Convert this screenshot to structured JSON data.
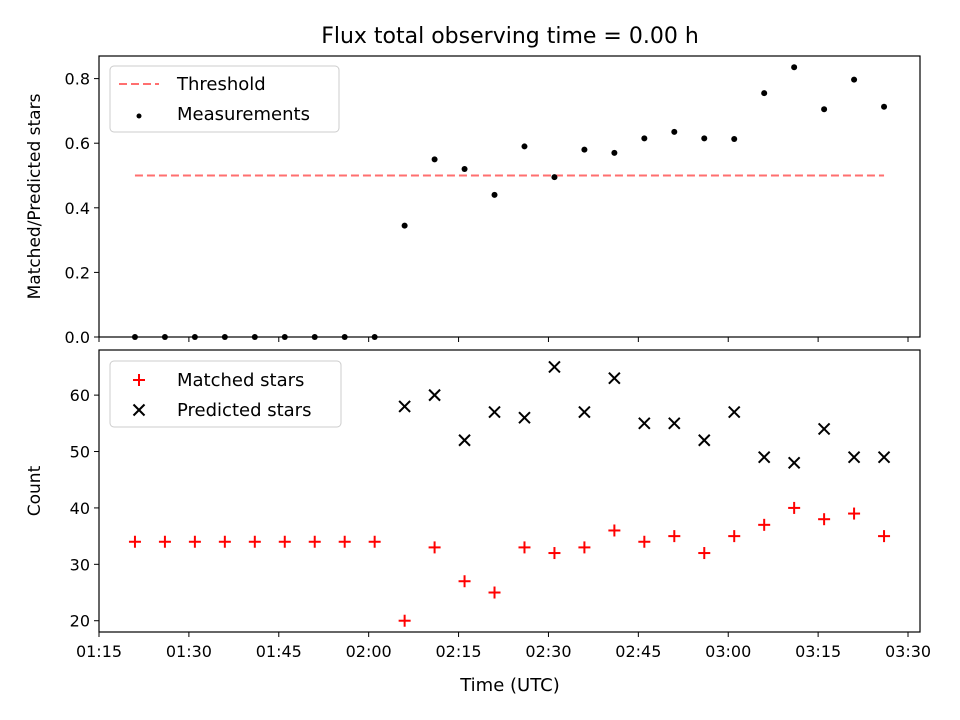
{
  "title": "Flux total observing time = 0.00 h",
  "xlabel": "Time (UTC)",
  "x_ticks": [
    "01:15",
    "01:30",
    "01:45",
    "02:00",
    "02:15",
    "02:30",
    "02:45",
    "03:00",
    "03:15",
    "03:30"
  ],
  "colors": {
    "threshold": "#ff6f6f",
    "measurements": "#000000",
    "matched": "#ff0000",
    "predicted": "#000000"
  },
  "chart_data": [
    {
      "type": "scatter",
      "ylabel": "Matched/Predicted stars",
      "ylim": [
        0,
        0.87
      ],
      "xlim": [
        "01:15",
        "03:32"
      ],
      "y_ticks": [
        "0.0",
        "0.2",
        "0.4",
        "0.6",
        "0.8"
      ],
      "legend_position": "top-left",
      "x": [
        "01:21",
        "01:26",
        "01:31",
        "01:36",
        "01:41",
        "01:46",
        "01:51",
        "01:56",
        "02:01",
        "02:06",
        "02:11",
        "02:16",
        "02:21",
        "02:26",
        "02:31",
        "02:36",
        "02:41",
        "02:46",
        "02:51",
        "02:56",
        "03:01",
        "03:06",
        "03:11",
        "03:16",
        "03:21",
        "03:26"
      ],
      "series": [
        {
          "name": "Measurements",
          "marker": "dot",
          "values": [
            0,
            0,
            0,
            0,
            0,
            0,
            0,
            0,
            0,
            0.345,
            0.55,
            0.52,
            0.44,
            0.59,
            0.495,
            0.58,
            0.57,
            0.615,
            0.635,
            0.615,
            0.613,
            0.755,
            0.835,
            0.705,
            0.797,
            0.713
          ]
        }
      ],
      "threshold": {
        "name": "Threshold",
        "value": 0.5,
        "x_start": "01:21",
        "x_end": "03:26",
        "style": "dashed"
      }
    },
    {
      "type": "scatter",
      "ylabel": "Count",
      "ylim": [
        18,
        68
      ],
      "xlim": [
        "01:15",
        "03:32"
      ],
      "y_ticks": [
        "20",
        "30",
        "40",
        "50",
        "60"
      ],
      "legend_position": "top-left",
      "series": [
        {
          "name": "Matched stars",
          "marker": "plus",
          "x": [
            "01:21",
            "01:26",
            "01:31",
            "01:36",
            "01:41",
            "01:46",
            "01:51",
            "01:56",
            "02:01",
            "02:06",
            "02:11",
            "02:16",
            "02:21",
            "02:26",
            "02:31",
            "02:36",
            "02:41",
            "02:46",
            "02:51",
            "02:56",
            "03:01",
            "03:06",
            "03:11",
            "03:16",
            "03:21",
            "03:26"
          ],
          "values": [
            34,
            34,
            34,
            34,
            34,
            34,
            34,
            34,
            34,
            20,
            33,
            27,
            25,
            33,
            32,
            33,
            36,
            34,
            35,
            32,
            35,
            37,
            40,
            38,
            39,
            35
          ]
        },
        {
          "name": "Predicted stars",
          "marker": "x",
          "x": [
            "02:06",
            "02:11",
            "02:16",
            "02:21",
            "02:26",
            "02:31",
            "02:36",
            "02:41",
            "02:46",
            "02:51",
            "02:56",
            "03:01",
            "03:06",
            "03:11",
            "03:16",
            "03:21",
            "03:26"
          ],
          "values": [
            58,
            60,
            52,
            57,
            56,
            65,
            57,
            63,
            55,
            55,
            52,
            57,
            49,
            48,
            54,
            49,
            49
          ]
        }
      ]
    }
  ]
}
